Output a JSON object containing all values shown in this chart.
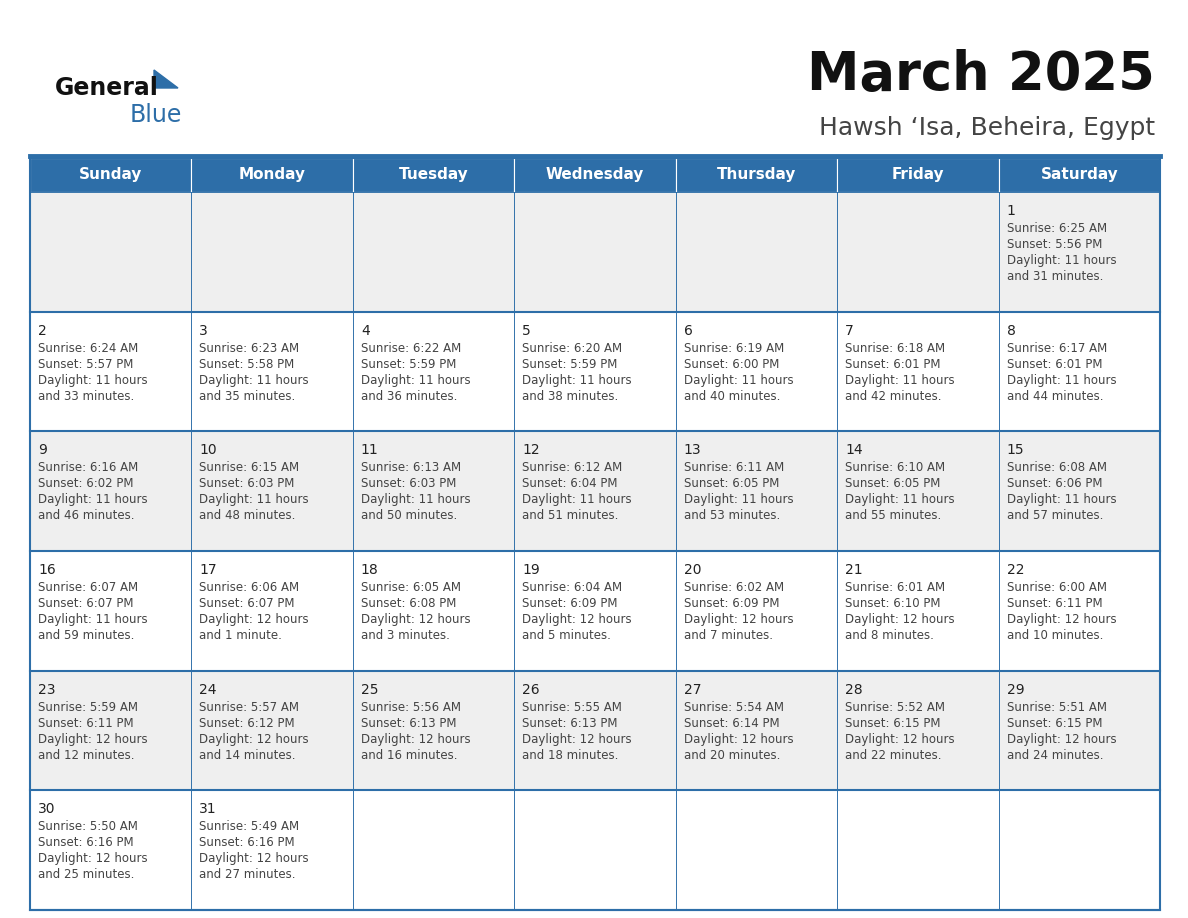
{
  "title": "March 2025",
  "subtitle": "Hawsh ‘Isa, Beheira, Egypt",
  "days_of_week": [
    "Sunday",
    "Monday",
    "Tuesday",
    "Wednesday",
    "Thursday",
    "Friday",
    "Saturday"
  ],
  "header_bg": "#2D6EA8",
  "header_text": "#FFFFFF",
  "cell_bg_row0": "#EFEFEF",
  "cell_bg_row1": "#FFFFFF",
  "cell_bg_row2": "#EFEFEF",
  "cell_bg_row3": "#FFFFFF",
  "cell_bg_row4": "#EFEFEF",
  "cell_bg_row5": "#FFFFFF",
  "border_color": "#2D6EA8",
  "day_number_color": "#222222",
  "cell_text_color": "#444444",
  "title_color": "#111111",
  "subtitle_color": "#444444",
  "logo_general_color": "#111111",
  "logo_blue_color": "#2D6EA8",
  "logo_triangle_color": "#2D6EA8",
  "calendar_data": [
    [
      null,
      null,
      null,
      null,
      null,
      null,
      {
        "day": 1,
        "sunrise": "6:25 AM",
        "sunset": "5:56 PM",
        "daylight_line1": "Daylight: 11 hours",
        "daylight_line2": "and 31 minutes."
      }
    ],
    [
      {
        "day": 2,
        "sunrise": "6:24 AM",
        "sunset": "5:57 PM",
        "daylight_line1": "Daylight: 11 hours",
        "daylight_line2": "and 33 minutes."
      },
      {
        "day": 3,
        "sunrise": "6:23 AM",
        "sunset": "5:58 PM",
        "daylight_line1": "Daylight: 11 hours",
        "daylight_line2": "and 35 minutes."
      },
      {
        "day": 4,
        "sunrise": "6:22 AM",
        "sunset": "5:59 PM",
        "daylight_line1": "Daylight: 11 hours",
        "daylight_line2": "and 36 minutes."
      },
      {
        "day": 5,
        "sunrise": "6:20 AM",
        "sunset": "5:59 PM",
        "daylight_line1": "Daylight: 11 hours",
        "daylight_line2": "and 38 minutes."
      },
      {
        "day": 6,
        "sunrise": "6:19 AM",
        "sunset": "6:00 PM",
        "daylight_line1": "Daylight: 11 hours",
        "daylight_line2": "and 40 minutes."
      },
      {
        "day": 7,
        "sunrise": "6:18 AM",
        "sunset": "6:01 PM",
        "daylight_line1": "Daylight: 11 hours",
        "daylight_line2": "and 42 minutes."
      },
      {
        "day": 8,
        "sunrise": "6:17 AM",
        "sunset": "6:01 PM",
        "daylight_line1": "Daylight: 11 hours",
        "daylight_line2": "and 44 minutes."
      }
    ],
    [
      {
        "day": 9,
        "sunrise": "6:16 AM",
        "sunset": "6:02 PM",
        "daylight_line1": "Daylight: 11 hours",
        "daylight_line2": "and 46 minutes."
      },
      {
        "day": 10,
        "sunrise": "6:15 AM",
        "sunset": "6:03 PM",
        "daylight_line1": "Daylight: 11 hours",
        "daylight_line2": "and 48 minutes."
      },
      {
        "day": 11,
        "sunrise": "6:13 AM",
        "sunset": "6:03 PM",
        "daylight_line1": "Daylight: 11 hours",
        "daylight_line2": "and 50 minutes."
      },
      {
        "day": 12,
        "sunrise": "6:12 AM",
        "sunset": "6:04 PM",
        "daylight_line1": "Daylight: 11 hours",
        "daylight_line2": "and 51 minutes."
      },
      {
        "day": 13,
        "sunrise": "6:11 AM",
        "sunset": "6:05 PM",
        "daylight_line1": "Daylight: 11 hours",
        "daylight_line2": "and 53 minutes."
      },
      {
        "day": 14,
        "sunrise": "6:10 AM",
        "sunset": "6:05 PM",
        "daylight_line1": "Daylight: 11 hours",
        "daylight_line2": "and 55 minutes."
      },
      {
        "day": 15,
        "sunrise": "6:08 AM",
        "sunset": "6:06 PM",
        "daylight_line1": "Daylight: 11 hours",
        "daylight_line2": "and 57 minutes."
      }
    ],
    [
      {
        "day": 16,
        "sunrise": "6:07 AM",
        "sunset": "6:07 PM",
        "daylight_line1": "Daylight: 11 hours",
        "daylight_line2": "and 59 minutes."
      },
      {
        "day": 17,
        "sunrise": "6:06 AM",
        "sunset": "6:07 PM",
        "daylight_line1": "Daylight: 12 hours",
        "daylight_line2": "and 1 minute."
      },
      {
        "day": 18,
        "sunrise": "6:05 AM",
        "sunset": "6:08 PM",
        "daylight_line1": "Daylight: 12 hours",
        "daylight_line2": "and 3 minutes."
      },
      {
        "day": 19,
        "sunrise": "6:04 AM",
        "sunset": "6:09 PM",
        "daylight_line1": "Daylight: 12 hours",
        "daylight_line2": "and 5 minutes."
      },
      {
        "day": 20,
        "sunrise": "6:02 AM",
        "sunset": "6:09 PM",
        "daylight_line1": "Daylight: 12 hours",
        "daylight_line2": "and 7 minutes."
      },
      {
        "day": 21,
        "sunrise": "6:01 AM",
        "sunset": "6:10 PM",
        "daylight_line1": "Daylight: 12 hours",
        "daylight_line2": "and 8 minutes."
      },
      {
        "day": 22,
        "sunrise": "6:00 AM",
        "sunset": "6:11 PM",
        "daylight_line1": "Daylight: 12 hours",
        "daylight_line2": "and 10 minutes."
      }
    ],
    [
      {
        "day": 23,
        "sunrise": "5:59 AM",
        "sunset": "6:11 PM",
        "daylight_line1": "Daylight: 12 hours",
        "daylight_line2": "and 12 minutes."
      },
      {
        "day": 24,
        "sunrise": "5:57 AM",
        "sunset": "6:12 PM",
        "daylight_line1": "Daylight: 12 hours",
        "daylight_line2": "and 14 minutes."
      },
      {
        "day": 25,
        "sunrise": "5:56 AM",
        "sunset": "6:13 PM",
        "daylight_line1": "Daylight: 12 hours",
        "daylight_line2": "and 16 minutes."
      },
      {
        "day": 26,
        "sunrise": "5:55 AM",
        "sunset": "6:13 PM",
        "daylight_line1": "Daylight: 12 hours",
        "daylight_line2": "and 18 minutes."
      },
      {
        "day": 27,
        "sunrise": "5:54 AM",
        "sunset": "6:14 PM",
        "daylight_line1": "Daylight: 12 hours",
        "daylight_line2": "and 20 minutes."
      },
      {
        "day": 28,
        "sunrise": "5:52 AM",
        "sunset": "6:15 PM",
        "daylight_line1": "Daylight: 12 hours",
        "daylight_line2": "and 22 minutes."
      },
      {
        "day": 29,
        "sunrise": "5:51 AM",
        "sunset": "6:15 PM",
        "daylight_line1": "Daylight: 12 hours",
        "daylight_line2": "and 24 minutes."
      }
    ],
    [
      {
        "day": 30,
        "sunrise": "5:50 AM",
        "sunset": "6:16 PM",
        "daylight_line1": "Daylight: 12 hours",
        "daylight_line2": "and 25 minutes."
      },
      {
        "day": 31,
        "sunrise": "5:49 AM",
        "sunset": "6:16 PM",
        "daylight_line1": "Daylight: 12 hours",
        "daylight_line2": "and 27 minutes."
      },
      null,
      null,
      null,
      null,
      null
    ]
  ]
}
